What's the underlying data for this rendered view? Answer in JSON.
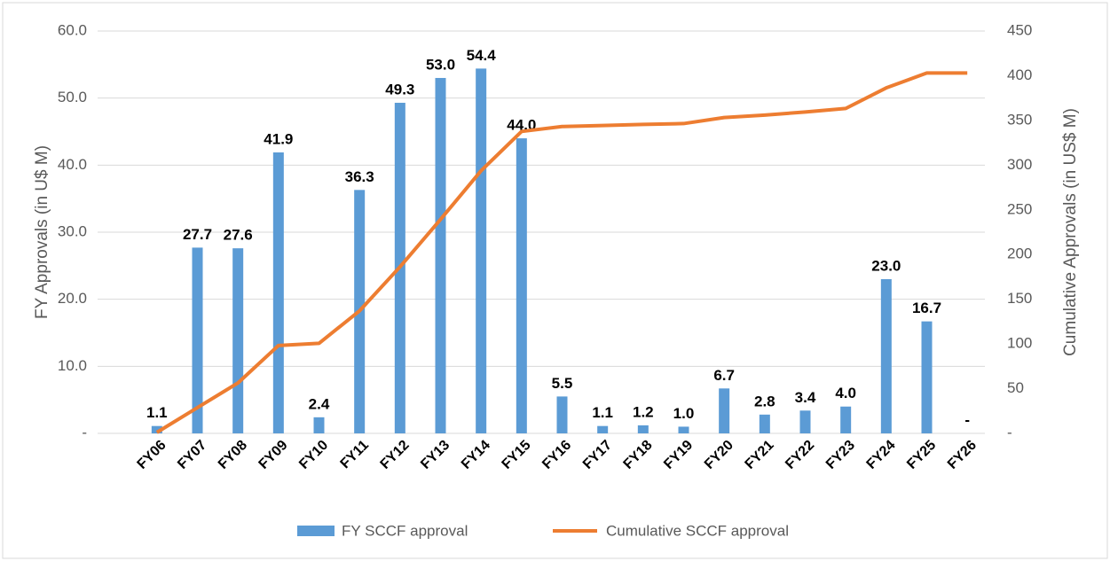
{
  "chart_data": {
    "type": "bar_line",
    "y_label": "FY Approvals (in U$ M)",
    "y2_label": "Cumulative Approvals (in US$ M)",
    "categories": [
      "FY06",
      "FY07",
      "FY08",
      "FY09",
      "FY10",
      "FY11",
      "FY12",
      "FY13",
      "FY14",
      "FY15",
      "FY16",
      "FY17",
      "FY18",
      "FY19",
      "FY20",
      "FY21",
      "FY22",
      "FY23",
      "FY24",
      "FY25",
      "FY26"
    ],
    "series": [
      {
        "name": "FY SCCF approval",
        "color": "#5b9bd5",
        "kind": "bar",
        "values": [
          1.1,
          27.7,
          27.6,
          41.9,
          2.4,
          36.3,
          49.3,
          53.0,
          54.4,
          44.0,
          5.5,
          1.1,
          1.2,
          1.0,
          6.7,
          2.8,
          3.4,
          4.0,
          23.0,
          16.7,
          0
        ],
        "value_labels": [
          "1.1",
          "27.7",
          "27.6",
          "41.9",
          "2.4",
          "36.3",
          "49.3",
          "53.0",
          "54.4",
          "44.0",
          "5.5",
          "1.1",
          "1.2",
          "1.0",
          "6.7",
          "2.8",
          "3.4",
          "4.0",
          "23.0",
          "16.7",
          "-"
        ]
      },
      {
        "name": "Cumulative SCCF approval",
        "color": "#ed7d31",
        "kind": "line",
        "axis": "y2",
        "values": [
          1.1,
          28.8,
          56.4,
          98.3,
          100.7,
          137.0,
          186.3,
          239.3,
          293.7,
          337.7,
          343.2,
          344.3,
          345.5,
          346.5,
          353.2,
          356.0,
          359.4,
          363.4,
          386.4,
          403.1,
          403.1
        ]
      }
    ],
    "ylim": [
      0,
      60
    ],
    "yticks": [
      {
        "value": 0,
        "label": "-"
      },
      {
        "value": 10,
        "label": "10.0"
      },
      {
        "value": 20,
        "label": "20.0"
      },
      {
        "value": 30,
        "label": "30.0"
      },
      {
        "value": 40,
        "label": "40.0"
      },
      {
        "value": 50,
        "label": "50.0"
      },
      {
        "value": 60,
        "label": "60.0"
      }
    ],
    "y2lim": [
      0,
      450
    ],
    "y2ticks": [
      {
        "value": 0,
        "label": "-"
      },
      50,
      100,
      150,
      200,
      250,
      300,
      350,
      400,
      450
    ],
    "grid": true,
    "legend": "bottom"
  }
}
